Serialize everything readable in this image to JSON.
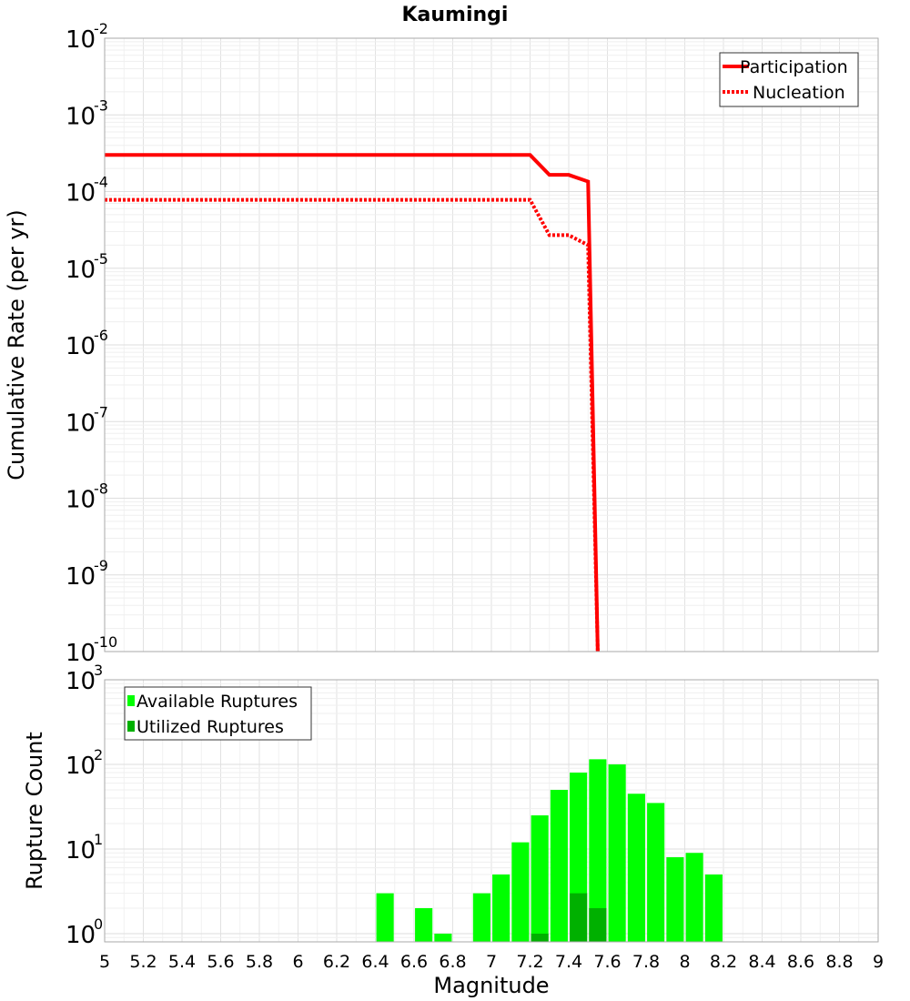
{
  "chart_data": [
    {
      "type": "line",
      "title": "Kaumingi",
      "xlabel": "",
      "ylabel": "Cumulative Rate (per yr)",
      "yscale": "log",
      "xlim": [
        5,
        9
      ],
      "ylim": [
        1e-10,
        0.01
      ],
      "y_ticks": [
        {
          "base": "10",
          "exp": "-2"
        },
        {
          "base": "10",
          "exp": "-3"
        },
        {
          "base": "10",
          "exp": "-4"
        },
        {
          "base": "10",
          "exp": "-5"
        },
        {
          "base": "10",
          "exp": "-6"
        },
        {
          "base": "10",
          "exp": "-7"
        },
        {
          "base": "10",
          "exp": "-8"
        },
        {
          "base": "10",
          "exp": "-9"
        },
        {
          "base": "10",
          "exp": "-10"
        }
      ],
      "grid": true,
      "legend_position": "top-right",
      "series": [
        {
          "name": "Participation",
          "style": "solid",
          "color": "#ff0000",
          "x": [
            5.0,
            7.2,
            7.3,
            7.4,
            7.5,
            7.55
          ],
          "y": [
            0.0003,
            0.0003,
            0.000165,
            0.000165,
            0.000135,
            1e-10
          ]
        },
        {
          "name": "Nucleation",
          "style": "dotted",
          "color": "#ff0000",
          "x": [
            5.0,
            7.2,
            7.3,
            7.4,
            7.5,
            7.55
          ],
          "y": [
            7.8e-05,
            7.8e-05,
            2.7e-05,
            2.7e-05,
            2e-05,
            1e-10
          ]
        }
      ]
    },
    {
      "type": "bar",
      "xlabel": "Magnitude",
      "ylabel": "Rupture Count",
      "yscale": "log",
      "xlim": [
        5,
        9
      ],
      "ylim": [
        0.8,
        1000
      ],
      "y_ticks": [
        {
          "base": "10",
          "exp": "3"
        },
        {
          "base": "10",
          "exp": "2"
        },
        {
          "base": "10",
          "exp": "1"
        },
        {
          "base": "10",
          "exp": "0"
        }
      ],
      "x_ticks": [
        "5",
        "5.2",
        "5.4",
        "5.6",
        "5.8",
        "6",
        "6.2",
        "6.4",
        "6.6",
        "6.8",
        "7",
        "7.2",
        "7.4",
        "7.6",
        "7.8",
        "8",
        "8.2",
        "8.4",
        "8.6",
        "8.8",
        "9"
      ],
      "grid": true,
      "legend_position": "top-left",
      "bar_width": 0.09,
      "series": [
        {
          "name": "Available Ruptures",
          "color": "#00ff00",
          "x": [
            6.45,
            6.65,
            6.75,
            6.95,
            7.05,
            7.15,
            7.25,
            7.35,
            7.45,
            7.55,
            7.65,
            7.75,
            7.85,
            7.95,
            8.05,
            8.15
          ],
          "values": [
            3,
            2,
            1,
            3,
            5,
            12,
            25,
            50,
            80,
            115,
            100,
            45,
            35,
            8,
            9,
            5
          ]
        },
        {
          "name": "Utilized Ruptures",
          "color": "#00b000",
          "x": [
            7.25,
            7.45,
            7.55
          ],
          "values": [
            1,
            3,
            2
          ]
        }
      ]
    }
  ]
}
